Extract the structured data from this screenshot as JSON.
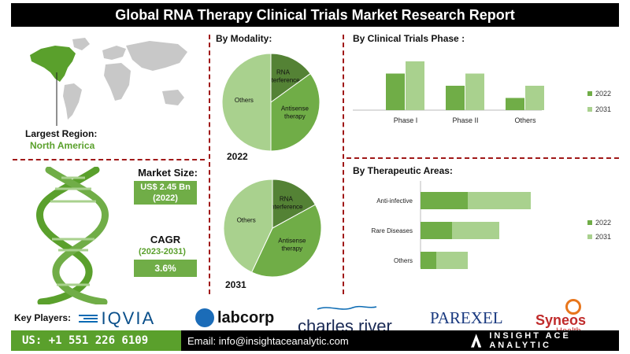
{
  "title": "Global RNA Therapy Clinical Trials Market Research Report",
  "region": {
    "label": "Largest Region:",
    "value": "North America"
  },
  "market_size": {
    "label": "Market Size:",
    "value": "US$ 2.45 Bn",
    "year": "(2022)"
  },
  "cagr": {
    "label": "CAGR",
    "period": "(2023-2031)",
    "value": "3.6%"
  },
  "modality": {
    "title": "By Modality:",
    "year_2022": "2022",
    "year_2031": "2031"
  },
  "phase": {
    "title": "By Clinical Trials Phase :"
  },
  "therapeutic": {
    "title": "By Therapeutic Areas:"
  },
  "key_players": {
    "label": "Key Players:",
    "logos": [
      "IQVIA",
      "labcorp",
      "charles river",
      "PAREXEL",
      "Syneos",
      "Health"
    ]
  },
  "footer": {
    "phone": "US: +1 551 226 6109",
    "email": "Email: info@insightaceanalytic.com",
    "brand": "INSIGHT ACE ANALYTIC"
  },
  "colors": {
    "dark_green": "#70ad47",
    "light_green": "#a9d18e",
    "accent_red": "#a01818",
    "footer_green": "#5aa02c"
  },
  "chart_data": [
    {
      "type": "pie",
      "year": "2022",
      "slices": [
        {
          "label": "RNA interference",
          "value": 15,
          "color": "#548235"
        },
        {
          "label": "Antisense therapy",
          "value": 35,
          "color": "#70ad47"
        },
        {
          "label": "Others",
          "value": 50,
          "color": "#a9d18e"
        }
      ]
    },
    {
      "type": "pie",
      "year": "2031",
      "slices": [
        {
          "label": "RNA interference",
          "value": 17,
          "color": "#548235"
        },
        {
          "label": "Antisense therapy",
          "value": 40,
          "color": "#70ad47"
        },
        {
          "label": "Others",
          "value": 43,
          "color": "#a9d18e"
        }
      ]
    },
    {
      "type": "bar",
      "categories": [
        "Phase I",
        "Phase II",
        "Others"
      ],
      "series": [
        {
          "name": "2022",
          "values": [
            30,
            20,
            10
          ],
          "color": "#70ad47"
        },
        {
          "name": "2031",
          "values": [
            40,
            30,
            20
          ],
          "color": "#a9d18e"
        }
      ],
      "legend": "right"
    },
    {
      "type": "bar",
      "orientation": "horizontal",
      "stacked": true,
      "categories": [
        "Anti-infective",
        "Rare Diseases",
        "Others"
      ],
      "series": [
        {
          "name": "2022",
          "values": [
            30,
            20,
            10
          ],
          "color": "#70ad47"
        },
        {
          "name": "2031",
          "values": [
            40,
            30,
            20
          ],
          "color": "#a9d18e"
        }
      ],
      "legend": "right"
    }
  ]
}
